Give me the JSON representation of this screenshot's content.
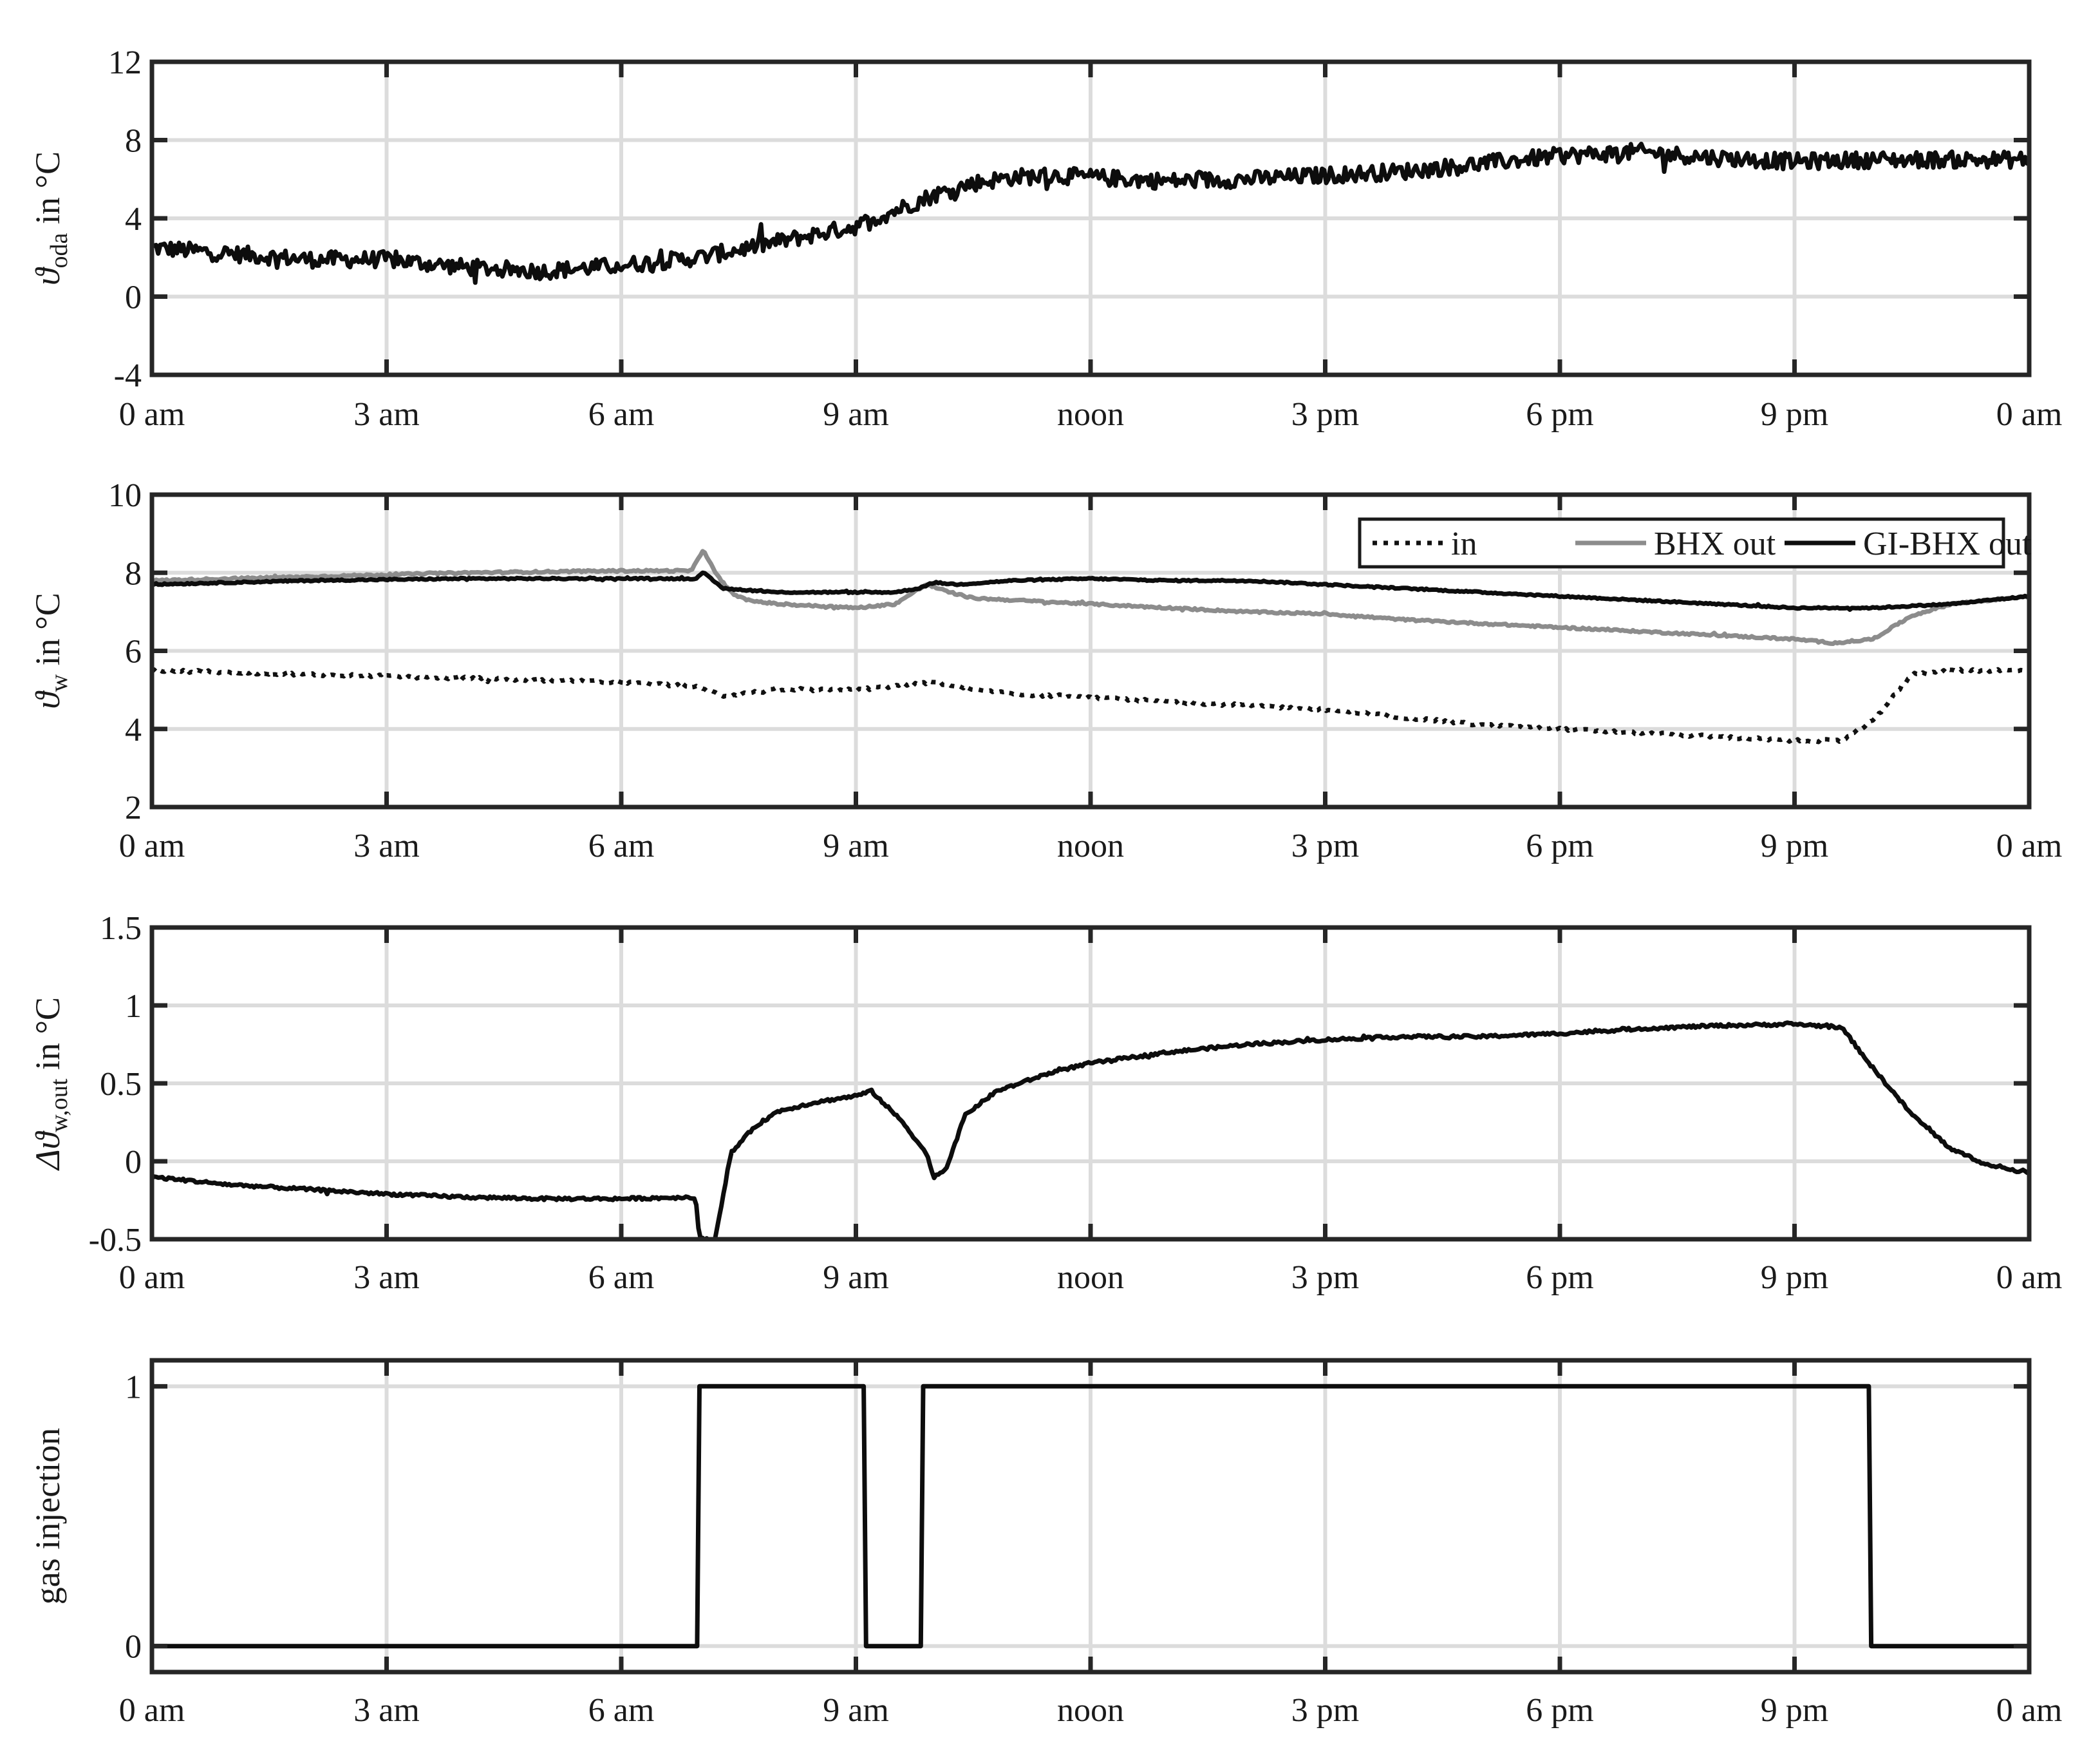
{
  "chart_data": [
    {
      "type": "line",
      "ylabel": "ϑoda in °C",
      "ylabel_symbol": "ϑ",
      "ylabel_sub": "oda",
      "ylabel_unit": " in °C",
      "ylim": [
        -4,
        12
      ],
      "yticks": [
        -4,
        0,
        4,
        8,
        12
      ],
      "ytick_labels": [
        "-4",
        "0",
        "4",
        "8",
        "12"
      ],
      "xlim": [
        0,
        24
      ],
      "xticks": [
        0,
        3,
        6,
        9,
        12,
        15,
        18,
        21,
        24
      ],
      "xtick_labels": [
        "0 am",
        "3 am",
        "6 am",
        "9 am",
        "noon",
        "3 pm",
        "6 pm",
        "9 pm",
        "0 am"
      ],
      "grid": true,
      "series": [
        {
          "color": "#0d0d0d",
          "style": "solid",
          "noise": 0.7,
          "x": [
            0,
            1,
            2,
            3,
            4,
            5,
            6,
            7,
            7.5,
            8,
            8.5,
            9,
            9.5,
            10,
            10.5,
            11,
            11.5,
            12,
            13,
            14,
            15,
            16,
            17,
            18,
            19,
            20,
            21,
            22,
            23,
            24
          ],
          "y": [
            2.5,
            2.2,
            1.9,
            1.9,
            1.5,
            1.3,
            1.6,
            2.0,
            2.4,
            2.8,
            3.2,
            3.6,
            4.4,
            5.2,
            5.8,
            6.1,
            6.2,
            6.1,
            5.9,
            6.0,
            6.2,
            6.4,
            6.8,
            7.2,
            7.4,
            7.1,
            6.9,
            7.0,
            7.0,
            7.0
          ]
        }
      ]
    },
    {
      "type": "line",
      "ylabel": "ϑw in °C",
      "ylabel_symbol": "ϑ",
      "ylabel_sub": "w",
      "ylabel_unit": " in °C",
      "ylim": [
        2,
        10
      ],
      "yticks": [
        2,
        4,
        6,
        8,
        10
      ],
      "ytick_labels": [
        "2",
        "4",
        "6",
        "8",
        "10"
      ],
      "xlim": [
        0,
        24
      ],
      "xticks": [
        0,
        3,
        6,
        9,
        12,
        15,
        18,
        21,
        24
      ],
      "xtick_labels": [
        "0 am",
        "3 am",
        "6 am",
        "9 am",
        "noon",
        "3 pm",
        "6 pm",
        "9 pm",
        "0 am"
      ],
      "grid": true,
      "legend": {
        "placement": "top-right",
        "entries": [
          "in",
          "BHX out",
          "GI-BHX out"
        ]
      },
      "series": [
        {
          "name": "in",
          "color": "#111111",
          "style": "dotted",
          "noise": 0.06,
          "x": [
            0,
            2,
            4,
            6,
            6.9,
            7.1,
            7.3,
            8,
            9,
            9.5,
            10,
            10.5,
            11,
            12,
            13,
            14,
            15,
            16,
            17,
            18,
            19,
            20,
            21,
            21.6,
            22,
            22.5,
            23,
            24
          ],
          "y": [
            5.5,
            5.4,
            5.3,
            5.2,
            5.1,
            5.0,
            4.85,
            5.0,
            5.0,
            5.1,
            5.2,
            5.0,
            4.9,
            4.8,
            4.7,
            4.6,
            4.5,
            4.3,
            4.1,
            4.0,
            3.9,
            3.8,
            3.7,
            3.7,
            4.2,
            5.4,
            5.5,
            5.5
          ]
        },
        {
          "name": "BHX out",
          "color": "#8c8c8c",
          "style": "solid",
          "noise": 0.04,
          "x": [
            0,
            2,
            4,
            6,
            6.9,
            7.05,
            7.2,
            7.4,
            7.6,
            8,
            9,
            9.5,
            9.9,
            10.2,
            10.5,
            11,
            12,
            13,
            14,
            15,
            16,
            17,
            18,
            19,
            20,
            21,
            21.5,
            22,
            22.5,
            23,
            24
          ],
          "y": [
            7.8,
            7.9,
            8.0,
            8.05,
            8.05,
            8.6,
            8.0,
            7.5,
            7.3,
            7.2,
            7.1,
            7.2,
            7.7,
            7.5,
            7.35,
            7.3,
            7.2,
            7.1,
            7.0,
            6.95,
            6.8,
            6.7,
            6.6,
            6.5,
            6.4,
            6.3,
            6.2,
            6.3,
            6.9,
            7.2,
            7.4
          ]
        },
        {
          "name": "GI-BHX out",
          "color": "#0d0d0d",
          "style": "solid",
          "noise": 0.03,
          "x": [
            0,
            2,
            4,
            6,
            6.95,
            7.05,
            7.3,
            8,
            9,
            9.5,
            9.8,
            10,
            10.3,
            11,
            12,
            13,
            14,
            15,
            16,
            17,
            18,
            19,
            20,
            21,
            22,
            23,
            24
          ],
          "y": [
            7.7,
            7.8,
            7.85,
            7.85,
            7.85,
            8.0,
            7.6,
            7.5,
            7.5,
            7.5,
            7.6,
            7.75,
            7.7,
            7.8,
            7.85,
            7.8,
            7.8,
            7.7,
            7.6,
            7.5,
            7.4,
            7.3,
            7.2,
            7.1,
            7.1,
            7.2,
            7.4
          ]
        }
      ]
    },
    {
      "type": "line",
      "ylabel": "Δϑw,out in °C",
      "ylabel_symbol": "Δϑ",
      "ylabel_sub": "w,out",
      "ylabel_unit": " in °C",
      "ylim": [
        -0.5,
        1.5
      ],
      "yticks": [
        -0.5,
        0,
        0.5,
        1,
        1.5
      ],
      "ytick_labels": [
        "-0.5",
        "0",
        "0.5",
        "1",
        "1.5"
      ],
      "xlim": [
        0,
        24
      ],
      "xticks": [
        0,
        3,
        6,
        9,
        12,
        15,
        18,
        21,
        24
      ],
      "xtick_labels": [
        "0 am",
        "3 am",
        "6 am",
        "9 am",
        "noon",
        "3 pm",
        "6 pm",
        "9 pm",
        "0 am"
      ],
      "grid": true,
      "series": [
        {
          "color": "#0d0d0d",
          "style": "solid",
          "noise": 0.015,
          "x": [
            0,
            1,
            2,
            3,
            4,
            5,
            6,
            6.95,
            7.0,
            7.2,
            7.4,
            7.7,
            8,
            8.5,
            9,
            9.2,
            9.6,
            9.9,
            10.0,
            10.15,
            10.4,
            10.8,
            11.5,
            12,
            13,
            14,
            15,
            16,
            17,
            18,
            19,
            20,
            21,
            21.6,
            22,
            22.5,
            23,
            23.5,
            24
          ],
          "y": [
            -0.1,
            -0.15,
            -0.18,
            -0.21,
            -0.23,
            -0.24,
            -0.24,
            -0.23,
            -0.5,
            -0.5,
            0.05,
            0.22,
            0.32,
            0.38,
            0.42,
            0.45,
            0.25,
            0.05,
            -0.1,
            -0.05,
            0.3,
            0.45,
            0.57,
            0.63,
            0.7,
            0.75,
            0.78,
            0.8,
            0.8,
            0.82,
            0.85,
            0.87,
            0.88,
            0.86,
            0.6,
            0.3,
            0.08,
            -0.03,
            -0.07
          ]
        }
      ]
    },
    {
      "type": "line",
      "ylabel": "gas injection",
      "ylim": [
        -0.1,
        1.1
      ],
      "yticks": [
        0,
        1
      ],
      "ytick_labels": [
        "0",
        "1"
      ],
      "xlim": [
        0,
        24
      ],
      "xticks": [
        0,
        3,
        6,
        9,
        12,
        15,
        18,
        21,
        24
      ],
      "xtick_labels": [
        "0 am",
        "3 am",
        "6 am",
        "9 am",
        "noon",
        "3 pm",
        "6 pm",
        "9 pm",
        "0 am"
      ],
      "grid": true,
      "series": [
        {
          "color": "#0d0d0d",
          "style": "solid",
          "noise": 0,
          "x": [
            0,
            6.97,
            7.0,
            9.1,
            9.13,
            9.83,
            9.86,
            21.95,
            21.98,
            24
          ],
          "y": [
            0,
            0,
            1,
            1,
            0,
            0,
            1,
            1,
            0,
            0
          ]
        }
      ]
    }
  ]
}
